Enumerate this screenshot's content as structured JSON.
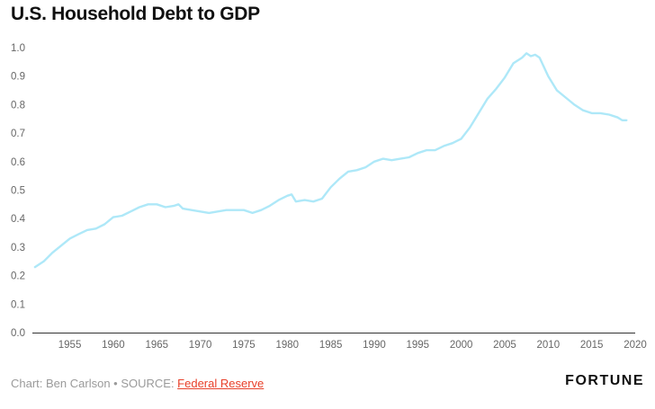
{
  "title": "U.S. Household Debt to GDP",
  "footer": {
    "credit_prefix": "Chart: Ben Carlson • SOURCE: ",
    "source_link": "Federal Reserve",
    "brand": "FORTUNE"
  },
  "colors": {
    "line": "#aee8f8",
    "axis": "#333333",
    "source_link": "#e8402a"
  },
  "chart_data": {
    "type": "line",
    "title": "U.S. Household Debt to GDP",
    "xlabel": "",
    "ylabel": "",
    "xlim": [
      1950.7,
      2020
    ],
    "ylim": [
      0,
      1.0
    ],
    "grid": false,
    "x_ticks": [
      "1955",
      "1960",
      "1965",
      "1970",
      "1975",
      "1980",
      "1985",
      "1990",
      "1995",
      "2000",
      "2005",
      "2010",
      "2015",
      "2020"
    ],
    "y_ticks": [
      "0.0",
      "0.1",
      "0.2",
      "0.3",
      "0.4",
      "0.5",
      "0.6",
      "0.7",
      "0.8",
      "0.9",
      "1.0"
    ],
    "series": [
      {
        "x": [
          1951,
          1952,
          1953,
          1954,
          1955,
          1956,
          1957,
          1958,
          1959,
          1960,
          1961,
          1962,
          1963,
          1964,
          1965,
          1966,
          1967,
          1967.5,
          1968,
          1969,
          1970,
          1971,
          1972,
          1973,
          1974,
          1975,
          1976,
          1977,
          1978,
          1979,
          1980,
          1980.5,
          1981,
          1982,
          1983,
          1984,
          1985,
          1986,
          1987,
          1988,
          1989,
          1990,
          1991,
          1992,
          1993,
          1994,
          1995,
          1996,
          1997,
          1998,
          1999,
          2000,
          2001,
          2002,
          2003,
          2004,
          2005,
          2006,
          2007,
          2007.5,
          2008,
          2008.5,
          2009,
          2010,
          2011,
          2012,
          2013,
          2014,
          2015,
          2016,
          2017,
          2018,
          2018.5,
          2019
        ],
        "y": [
          0.23,
          0.25,
          0.28,
          0.305,
          0.33,
          0.345,
          0.36,
          0.365,
          0.38,
          0.405,
          0.41,
          0.425,
          0.44,
          0.45,
          0.45,
          0.44,
          0.445,
          0.45,
          0.435,
          0.43,
          0.425,
          0.42,
          0.425,
          0.43,
          0.43,
          0.43,
          0.42,
          0.43,
          0.445,
          0.465,
          0.48,
          0.485,
          0.46,
          0.465,
          0.46,
          0.47,
          0.51,
          0.54,
          0.565,
          0.57,
          0.58,
          0.6,
          0.61,
          0.605,
          0.61,
          0.615,
          0.63,
          0.64,
          0.64,
          0.655,
          0.665,
          0.68,
          0.72,
          0.77,
          0.82,
          0.855,
          0.895,
          0.945,
          0.965,
          0.98,
          0.97,
          0.975,
          0.965,
          0.9,
          0.85,
          0.825,
          0.8,
          0.78,
          0.77,
          0.77,
          0.765,
          0.755,
          0.745,
          0.745
        ]
      }
    ]
  }
}
